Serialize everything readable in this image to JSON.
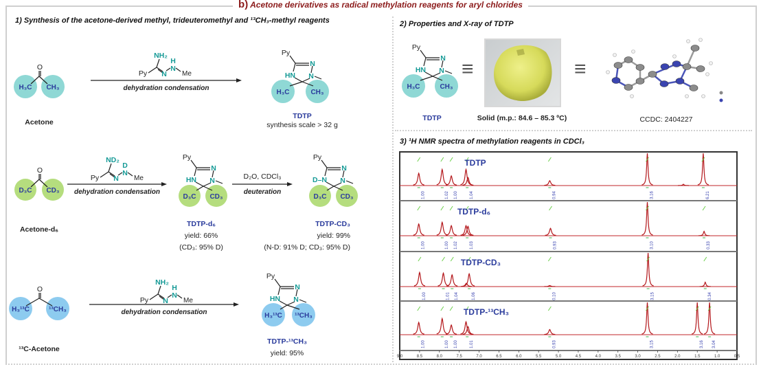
{
  "title": {
    "letter": "b)",
    "text": "Acetone derivatives as radical methylation reagents for aryl chlorides"
  },
  "colors": {
    "title": "#8b1a1a",
    "label_blue": "#2a3b9c",
    "nitrogen_teal": "#159a96",
    "circle_teal": "#8fd8d5",
    "circle_green": "#b5dd7e",
    "circle_blue": "#8dcbef",
    "spectrum": "#b3161a"
  },
  "section1": {
    "heading": "1) Synthesis of the acetone-derived methyl, trideuteromethyl and ¹³CH₃-methyl reagents",
    "row1": {
      "sm": {
        "o": "O",
        "left": "H₃C",
        "right": "CH₃",
        "name": "Acetone"
      },
      "reagent": {
        "top": "NH₂",
        "h": "H",
        "n1": "N",
        "n2": "N",
        "py": "Py",
        "me": "Me"
      },
      "condition": "dehydration condensation",
      "product": {
        "py": "Py",
        "n_top": "N",
        "n_right": "N",
        "n_left": "HN",
        "left": "H₃C",
        "right": "CH₃",
        "name": "TDTP",
        "note": "synthesis scale > 32 g"
      }
    },
    "row2": {
      "sm": {
        "o": "O",
        "left": "D₃C",
        "right": "CD₃",
        "name": "Acetone-d₆"
      },
      "reagent": {
        "top": "ND₂",
        "h": "D",
        "n1": "N",
        "n2": "N",
        "py": "Py",
        "me": "Me"
      },
      "condition": "dehydration condensation",
      "product": {
        "py": "Py",
        "n_top": "N",
        "n_right": "N",
        "n_left": "HN",
        "left": "D₃C",
        "right": "CD₃",
        "name": "TDTP-d₆",
        "yield": "yield: 66%",
        "note": "(CD₃: 95% D)"
      },
      "condition2_top": "D₂O, CDCl₃",
      "condition2": "deuteration",
      "product2": {
        "py": "Py",
        "n_top": "N",
        "n_right": "N",
        "n_left": "D–N",
        "left": "D₃C",
        "right": "CD₃",
        "name": "TDTP-CD₃",
        "yield": "yield: 99%",
        "note": "(N-D: 91% D; CD₃: 95% D)"
      }
    },
    "row3": {
      "sm": {
        "o": "O",
        "left": "H₃¹³C",
        "right": "¹³CH₃",
        "name": "¹³C-Acetone"
      },
      "reagent": {
        "top": "NH₂",
        "h": "H",
        "n1": "N",
        "n2": "N",
        "py": "Py",
        "me": "Me"
      },
      "condition": "dehydration condensation",
      "product": {
        "py": "Py",
        "n_top": "N",
        "n_right": "N",
        "n_left": "HN",
        "left": "H₃¹³C",
        "right": "¹³CH₃",
        "name": "TDTP-¹³CH₃",
        "yield": "yield: 95%"
      }
    }
  },
  "section2": {
    "heading": "2) Properties and X-ray of TDTP",
    "structure": {
      "py": "Py",
      "n_top": "N",
      "n_right": "N",
      "n_left": "HN",
      "left": "H₃C",
      "right": "CH₃",
      "name": "TDTP"
    },
    "equiv": "≡",
    "solid_label": "Solid (m.p.: 84.6 – 85.3 ºC)",
    "ccdc": "CCDC: 2404227"
  },
  "section3": {
    "heading": "3) ¹H NMR spectra of methylation reagents in CDCl₃"
  },
  "chart_data": {
    "type": "line",
    "title": "¹H NMR spectra of methylation reagents in CDCl₃",
    "xlabel": "ppm",
    "xlim": [
      9.0,
      0.5
    ],
    "x_ticks": [
      "9.0",
      "8.5",
      "8.0",
      "7.5",
      "7.0",
      "6.5",
      "6.0",
      "5.5",
      "5.0",
      "4.5",
      "4.0",
      "3.5",
      "3.0",
      "2.5",
      "2.0",
      "1.5",
      "1.0",
      "0.5"
    ],
    "series": [
      {
        "name": "TDTP",
        "peaks": [
          {
            "ppm": 8.52,
            "h": 0.38
          },
          {
            "ppm": 7.93,
            "h": 0.5
          },
          {
            "ppm": 7.7,
            "h": 0.3
          },
          {
            "ppm": 7.33,
            "h": 0.5
          },
          {
            "ppm": 7.28,
            "h": 0.25
          },
          {
            "ppm": 5.22,
            "h": 0.15
          },
          {
            "ppm": 2.76,
            "h": 1.0
          },
          {
            "ppm": 1.85,
            "h": 0.04
          },
          {
            "ppm": 1.35,
            "h": 1.0
          }
        ],
        "integrals": [
          {
            "ppm": 8.52,
            "value": "1.00"
          },
          {
            "ppm": 7.93,
            "value": "1.02"
          },
          {
            "ppm": 7.7,
            "value": "1.00"
          },
          {
            "ppm": 7.3,
            "value": "1.04"
          },
          {
            "ppm": 5.22,
            "value": "0.94"
          },
          {
            "ppm": 2.76,
            "value": "3.16"
          },
          {
            "ppm": 1.35,
            "value": "6.21"
          }
        ]
      },
      {
        "name": "TDTP-d₆",
        "peaks": [
          {
            "ppm": 8.52,
            "h": 0.35
          },
          {
            "ppm": 7.93,
            "h": 0.4
          },
          {
            "ppm": 7.7,
            "h": 0.3
          },
          {
            "ppm": 7.33,
            "h": 0.3
          },
          {
            "ppm": 7.28,
            "h": 0.28
          },
          {
            "ppm": 5.2,
            "h": 0.22
          },
          {
            "ppm": 2.76,
            "h": 1.0
          },
          {
            "ppm": 1.33,
            "h": 0.13
          }
        ],
        "integrals": [
          {
            "ppm": 8.52,
            "value": "1.00"
          },
          {
            "ppm": 7.93,
            "value": "1.00"
          },
          {
            "ppm": 7.7,
            "value": "1.02"
          },
          {
            "ppm": 7.3,
            "value": "1.03"
          },
          {
            "ppm": 5.2,
            "value": "0.93"
          },
          {
            "ppm": 2.76,
            "value": "3.10"
          },
          {
            "ppm": 1.33,
            "value": "0.33"
          }
        ]
      },
      {
        "name": "TDTP-CD₃",
        "peaks": [
          {
            "ppm": 8.5,
            "h": 0.42
          },
          {
            "ppm": 7.9,
            "h": 0.4
          },
          {
            "ppm": 7.68,
            "h": 0.35
          },
          {
            "ppm": 7.32,
            "h": 0.1
          },
          {
            "ppm": 7.25,
            "h": 0.38
          },
          {
            "ppm": 5.22,
            "h": 0.03
          },
          {
            "ppm": 2.74,
            "h": 1.0
          },
          {
            "ppm": 1.3,
            "h": 0.13
          }
        ],
        "integrals": [
          {
            "ppm": 8.5,
            "value": "1.00"
          },
          {
            "ppm": 7.9,
            "value": "1.01"
          },
          {
            "ppm": 7.68,
            "value": "1.04"
          },
          {
            "ppm": 7.25,
            "value": "1.06"
          },
          {
            "ppm": 5.22,
            "value": "0.10"
          },
          {
            "ppm": 2.74,
            "value": "3.15"
          },
          {
            "ppm": 1.3,
            "value": "0.34"
          }
        ]
      },
      {
        "name": "TDTP-¹³CH₃",
        "peaks": [
          {
            "ppm": 8.52,
            "h": 0.38
          },
          {
            "ppm": 7.93,
            "h": 0.5
          },
          {
            "ppm": 7.7,
            "h": 0.3
          },
          {
            "ppm": 7.33,
            "h": 0.4
          },
          {
            "ppm": 7.28,
            "h": 0.25
          },
          {
            "ppm": 5.22,
            "h": 0.16
          },
          {
            "ppm": 2.76,
            "h": 1.0
          },
          {
            "ppm": 1.5,
            "h": 1.0
          },
          {
            "ppm": 1.19,
            "h": 1.0
          }
        ],
        "integrals": [
          {
            "ppm": 8.52,
            "value": "1.00"
          },
          {
            "ppm": 7.93,
            "value": "1.00"
          },
          {
            "ppm": 7.7,
            "value": "1.00"
          },
          {
            "ppm": 7.3,
            "value": "1.01"
          },
          {
            "ppm": 5.22,
            "value": "0.93"
          },
          {
            "ppm": 2.76,
            "value": "3.15"
          },
          {
            "ppm": 1.5,
            "value": "3.16"
          },
          {
            "ppm": 1.19,
            "value": "3.04"
          }
        ]
      }
    ]
  }
}
